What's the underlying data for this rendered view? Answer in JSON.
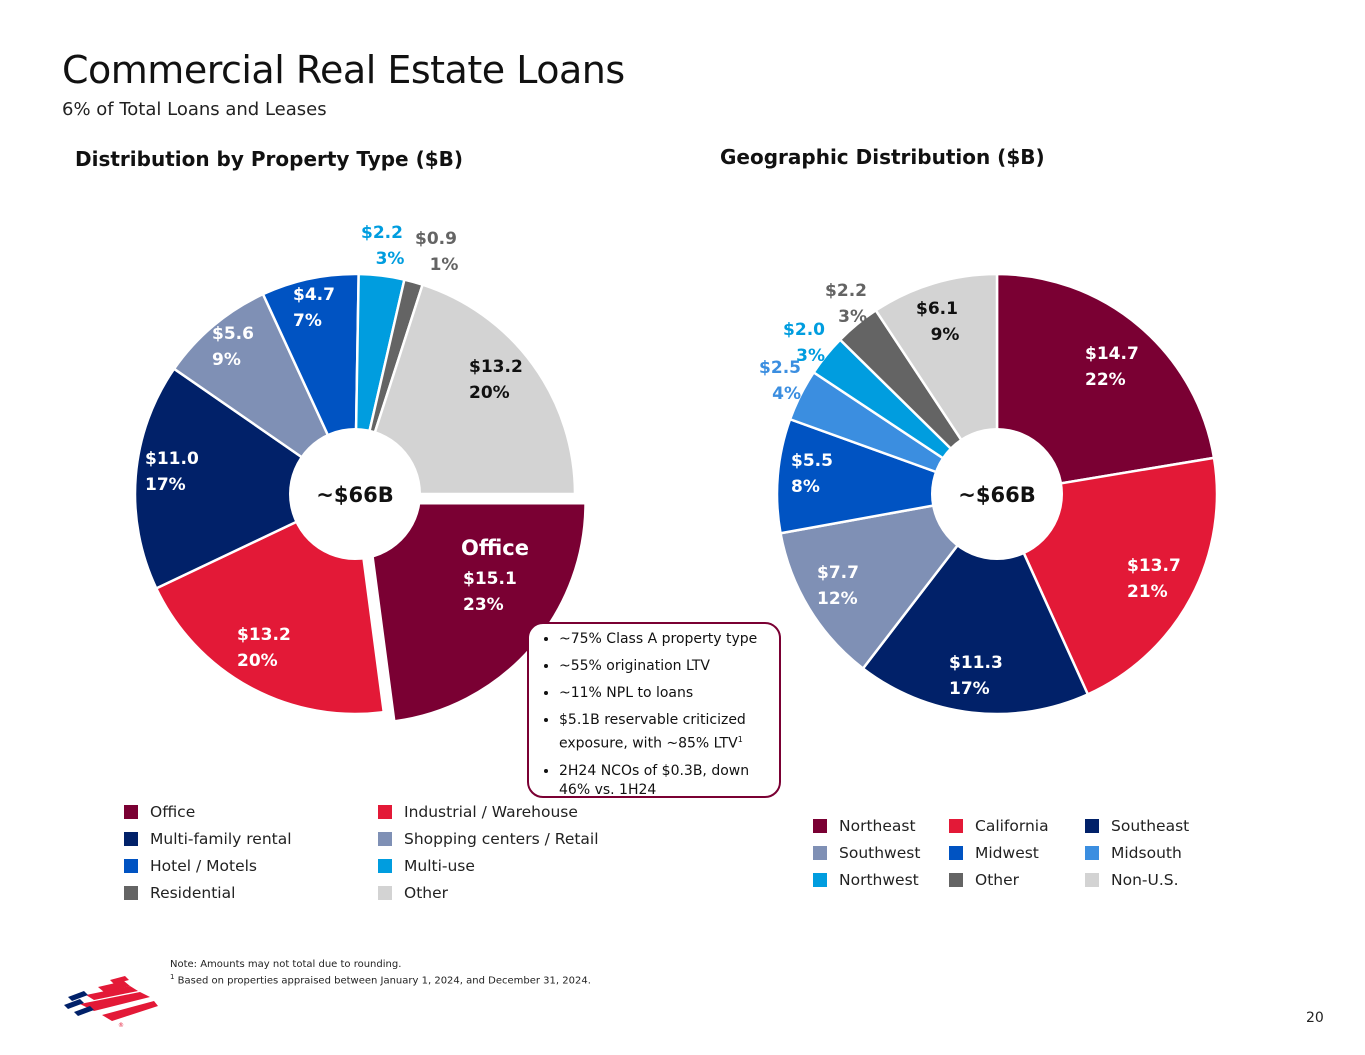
{
  "page": {
    "title": "Commercial Real Estate Loans",
    "subtitle": "6% of Total Loans and Leases",
    "page_number": "20",
    "note_line1": "Note: Amounts may not total due to rounding.",
    "note_sup": "1",
    "note_line2": " Based on properties appraised between January 1, 2024, and December 31, 2024.",
    "logo_icon": "bank-flag-logo"
  },
  "callout": {
    "items": [
      {
        "text": "~75% Class A property type"
      },
      {
        "text": "~55% origination LTV"
      },
      {
        "text": "~11% NPL to loans"
      },
      {
        "text": "$5.1B reservable criticized exposure, with ~85% LTV",
        "sup": "1"
      },
      {
        "text": "2H24 NCOs of $0.3B, down 46% vs. 1H24"
      }
    ]
  },
  "chart_data": [
    {
      "type": "pie",
      "title": "Distribution by Property Type ($B)",
      "center_label": "~$66B",
      "exploded": "Office",
      "exploded_label": "Office",
      "slices": [
        {
          "name": "Office",
          "value": 15.1,
          "value_label": "$15.1",
          "pct_label": "23%",
          "color": "#7a0033"
        },
        {
          "name": "Industrial / Warehouse",
          "value": 13.2,
          "value_label": "$13.2",
          "pct_label": "20%",
          "color": "#e31937"
        },
        {
          "name": "Multi-family rental",
          "value": 11.0,
          "value_label": "$11.0",
          "pct_label": "17%",
          "color": "#012169"
        },
        {
          "name": "Shopping centers / Retail",
          "value": 5.6,
          "value_label": "$5.6",
          "pct_label": "9%",
          "color": "#7f90b5"
        },
        {
          "name": "Hotel / Motels",
          "value": 4.7,
          "value_label": "$4.7",
          "pct_label": "7%",
          "color": "#0053c2"
        },
        {
          "name": "Multi-use",
          "value": 2.2,
          "value_label": "$2.2",
          "pct_label": "3%",
          "color": "#009ddf"
        },
        {
          "name": "Residential",
          "value": 0.9,
          "value_label": "$0.9",
          "pct_label": "1%",
          "color": "#646464"
        },
        {
          "name": "Other",
          "value": 13.2,
          "value_label": "$13.2",
          "pct_label": "20%",
          "color": "#d3d3d3"
        }
      ],
      "legend": [
        {
          "name": "Office",
          "color": "#7a0033"
        },
        {
          "name": "Industrial / Warehouse",
          "color": "#e31937"
        },
        {
          "name": "Multi-family rental",
          "color": "#012169"
        },
        {
          "name": "Shopping centers / Retail",
          "color": "#7f90b5"
        },
        {
          "name": "Hotel / Motels",
          "color": "#0053c2"
        },
        {
          "name": "Multi-use",
          "color": "#009ddf"
        },
        {
          "name": "Residential",
          "color": "#646464"
        },
        {
          "name": "Other",
          "color": "#d3d3d3"
        }
      ]
    },
    {
      "type": "pie",
      "title": "Geographic Distribution ($B)",
      "center_label": "~$66B",
      "slices": [
        {
          "name": "Northeast",
          "value": 14.7,
          "value_label": "$14.7",
          "pct_label": "22%",
          "color": "#7a0033"
        },
        {
          "name": "California",
          "value": 13.7,
          "value_label": "$13.7",
          "pct_label": "21%",
          "color": "#e31937"
        },
        {
          "name": "Southeast",
          "value": 11.3,
          "value_label": "$11.3",
          "pct_label": "17%",
          "color": "#012169"
        },
        {
          "name": "Southwest",
          "value": 7.7,
          "value_label": "$7.7",
          "pct_label": "12%",
          "color": "#7f90b5"
        },
        {
          "name": "Midwest",
          "value": 5.5,
          "value_label": "$5.5",
          "pct_label": "8%",
          "color": "#0053c2"
        },
        {
          "name": "Midsouth",
          "value": 2.5,
          "value_label": "$2.5",
          "pct_label": "4%",
          "color": "#3b8ee0"
        },
        {
          "name": "Northwest",
          "value": 2.0,
          "value_label": "$2.0",
          "pct_label": "3%",
          "color": "#009ddf"
        },
        {
          "name": "Other",
          "value": 2.2,
          "value_label": "$2.2",
          "pct_label": "3%",
          "color": "#646464"
        },
        {
          "name": "Non-U.S.",
          "value": 6.1,
          "value_label": "$6.1",
          "pct_label": "9%",
          "color": "#d3d3d3"
        }
      ],
      "legend": [
        {
          "name": "Northeast",
          "color": "#7a0033"
        },
        {
          "name": "California",
          "color": "#e31937"
        },
        {
          "name": "Southeast",
          "color": "#012169"
        },
        {
          "name": "Southwest",
          "color": "#7f90b5"
        },
        {
          "name": "Midwest",
          "color": "#0053c2"
        },
        {
          "name": "Midsouth",
          "color": "#3b8ee0"
        },
        {
          "name": "Northwest",
          "color": "#009ddf"
        },
        {
          "name": "Other",
          "color": "#646464"
        },
        {
          "name": "Non-U.S.",
          "color": "#d3d3d3"
        }
      ]
    }
  ]
}
